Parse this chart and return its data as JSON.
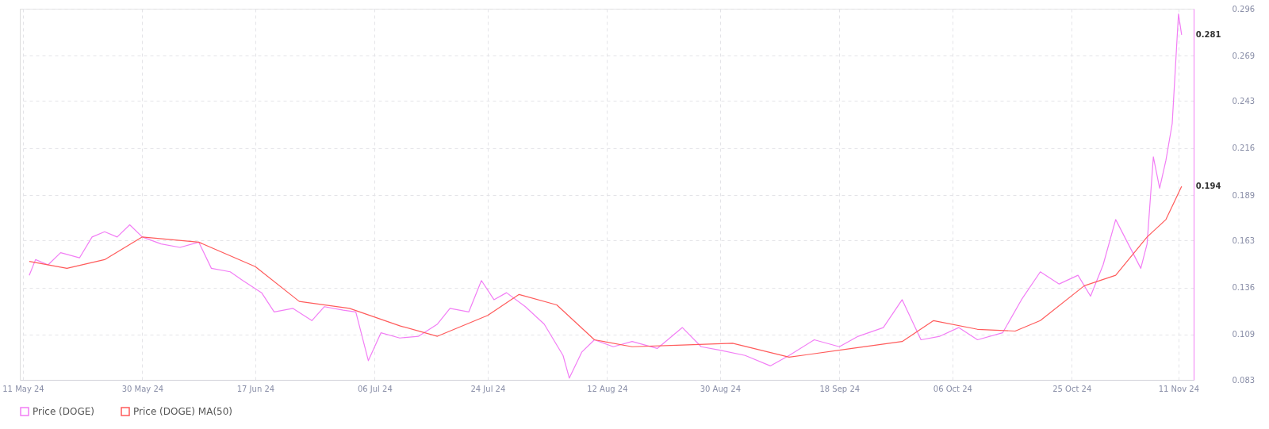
{
  "chart_data": {
    "type": "line",
    "xlim": [
      "2024-05-10T12:00",
      "2024-11-13T10:00"
    ],
    "xticks": [
      {
        "value": "2024-05-11",
        "label": "11 May 24"
      },
      {
        "value": "2024-05-30",
        "label": "30 May 24"
      },
      {
        "value": "2024-06-17",
        "label": "17 Jun 24"
      },
      {
        "value": "2024-07-06",
        "label": "06 Jul 24"
      },
      {
        "value": "2024-07-24",
        "label": "24 Jul 24"
      },
      {
        "value": "2024-08-12",
        "label": "12 Aug 24"
      },
      {
        "value": "2024-08-30",
        "label": "30 Aug 24"
      },
      {
        "value": "2024-09-18",
        "label": "18 Sep 24"
      },
      {
        "value": "2024-10-06",
        "label": "06 Oct 24"
      },
      {
        "value": "2024-10-25",
        "label": "25 Oct 24"
      },
      {
        "value": "2024-11-11",
        "label": "11 Nov 24"
      }
    ],
    "ylim": [
      0.083,
      0.296
    ],
    "yticks": [
      0.083,
      0.109,
      0.136,
      0.163,
      0.189,
      0.216,
      0.243,
      0.269,
      0.296
    ],
    "grid": true,
    "legend": "bottom",
    "marker": "none",
    "line_style": "solid",
    "series": [
      {
        "name": "Price (DOGE)",
        "color": "#f27ef5",
        "x": [
          "2024-05-12",
          "2024-05-13",
          "2024-05-15",
          "2024-05-17",
          "2024-05-20",
          "2024-05-22",
          "2024-05-24",
          "2024-05-26",
          "2024-05-28",
          "2024-05-30",
          "2024-06-02",
          "2024-06-05",
          "2024-06-08",
          "2024-06-10",
          "2024-06-13",
          "2024-06-15",
          "2024-06-18",
          "2024-06-20",
          "2024-06-23",
          "2024-06-26",
          "2024-06-28",
          "2024-07-01",
          "2024-07-03",
          "2024-07-05",
          "2024-07-07",
          "2024-07-10",
          "2024-07-13",
          "2024-07-16",
          "2024-07-18",
          "2024-07-21",
          "2024-07-23",
          "2024-07-25",
          "2024-07-27",
          "2024-07-30",
          "2024-08-02",
          "2024-08-05",
          "2024-08-06",
          "2024-08-08",
          "2024-08-10",
          "2024-08-13",
          "2024-08-16",
          "2024-08-20",
          "2024-08-24",
          "2024-08-27",
          "2024-08-30",
          "2024-09-03",
          "2024-09-07",
          "2024-09-10",
          "2024-09-14",
          "2024-09-18",
          "2024-09-21",
          "2024-09-25",
          "2024-09-28",
          "2024-10-01",
          "2024-10-04",
          "2024-10-07",
          "2024-10-10",
          "2024-10-14",
          "2024-10-17",
          "2024-10-20",
          "2024-10-23",
          "2024-10-26",
          "2024-10-28",
          "2024-10-30",
          "2024-11-01",
          "2024-11-03",
          "2024-11-05",
          "2024-11-06",
          "2024-11-07",
          "2024-11-08",
          "2024-11-09",
          "2024-11-10",
          "2024-11-11",
          "2024-11-11T12:00"
        ],
        "values": [
          0.143,
          0.152,
          0.149,
          0.156,
          0.153,
          0.165,
          0.168,
          0.165,
          0.172,
          0.165,
          0.161,
          0.159,
          0.162,
          0.147,
          0.145,
          0.14,
          0.133,
          0.122,
          0.124,
          0.117,
          0.125,
          0.123,
          0.122,
          0.094,
          0.11,
          0.107,
          0.108,
          0.115,
          0.124,
          0.122,
          0.14,
          0.129,
          0.133,
          0.125,
          0.115,
          0.097,
          0.084,
          0.099,
          0.106,
          0.102,
          0.105,
          0.101,
          0.113,
          0.102,
          0.1,
          0.097,
          0.091,
          0.097,
          0.106,
          0.102,
          0.108,
          0.113,
          0.129,
          0.106,
          0.108,
          0.113,
          0.106,
          0.11,
          0.129,
          0.145,
          0.138,
          0.143,
          0.131,
          0.149,
          0.175,
          0.161,
          0.147,
          0.161,
          0.211,
          0.193,
          0.209,
          0.23,
          0.293,
          0.281
        ]
      },
      {
        "name": "Price (DOGE) MA(50)",
        "color": "#ff5b5b",
        "x": [
          "2024-05-12",
          "2024-05-18",
          "2024-05-24",
          "2024-05-30",
          "2024-06-08",
          "2024-06-17",
          "2024-06-24",
          "2024-07-02",
          "2024-07-10",
          "2024-07-16",
          "2024-07-24",
          "2024-07-29",
          "2024-08-04",
          "2024-08-10",
          "2024-08-16",
          "2024-08-24",
          "2024-09-01",
          "2024-09-10",
          "2024-09-20",
          "2024-09-28",
          "2024-10-03",
          "2024-10-10",
          "2024-10-16",
          "2024-10-20",
          "2024-10-27",
          "2024-11-01",
          "2024-11-06",
          "2024-11-09",
          "2024-11-11T12:00"
        ],
        "values": [
          0.151,
          0.147,
          0.152,
          0.165,
          0.162,
          0.148,
          0.128,
          0.124,
          0.114,
          0.108,
          0.12,
          0.132,
          0.126,
          0.106,
          0.102,
          0.103,
          0.104,
          0.096,
          0.101,
          0.105,
          0.117,
          0.112,
          0.111,
          0.117,
          0.137,
          0.143,
          0.165,
          0.175,
          0.194
        ]
      }
    ],
    "annotations": [
      {
        "text": "0.281",
        "x": "2024-11-11T12:00",
        "y": 0.281
      },
      {
        "text": "0.194",
        "x": "2024-11-11T12:00",
        "y": 0.194
      }
    ]
  }
}
